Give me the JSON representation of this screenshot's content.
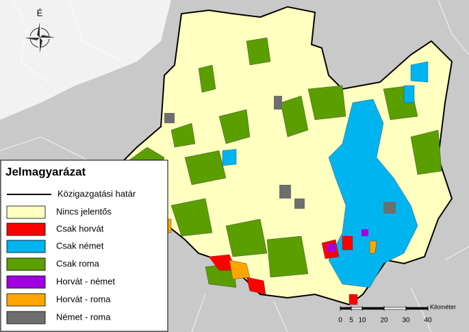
{
  "map": {
    "north_label": "É",
    "legend": {
      "title": "Jelmagyarázat",
      "items": [
        {
          "label": "Közigazgatási határ",
          "color": "#000000",
          "symbol": "line"
        },
        {
          "label": "Nincs jelentős",
          "color": "#ffffc0",
          "symbol": "box"
        },
        {
          "label": "Csak horvát",
          "color": "#ff0000",
          "symbol": "box"
        },
        {
          "label": "Csak német",
          "color": "#00b4f0",
          "symbol": "box"
        },
        {
          "label": "Csak roma",
          "color": "#5a9e00",
          "symbol": "box"
        },
        {
          "label": "Horvát - német",
          "color": "#a000e0",
          "symbol": "box"
        },
        {
          "label": "Horvát - roma",
          "color": "#ffa500",
          "symbol": "box"
        },
        {
          "label": "Német - roma",
          "color": "#6e6e6e",
          "symbol": "box"
        }
      ]
    },
    "scale_bar": {
      "unit": "Kilométer",
      "ticks": [
        0,
        5,
        10,
        20,
        30,
        40
      ]
    }
  }
}
